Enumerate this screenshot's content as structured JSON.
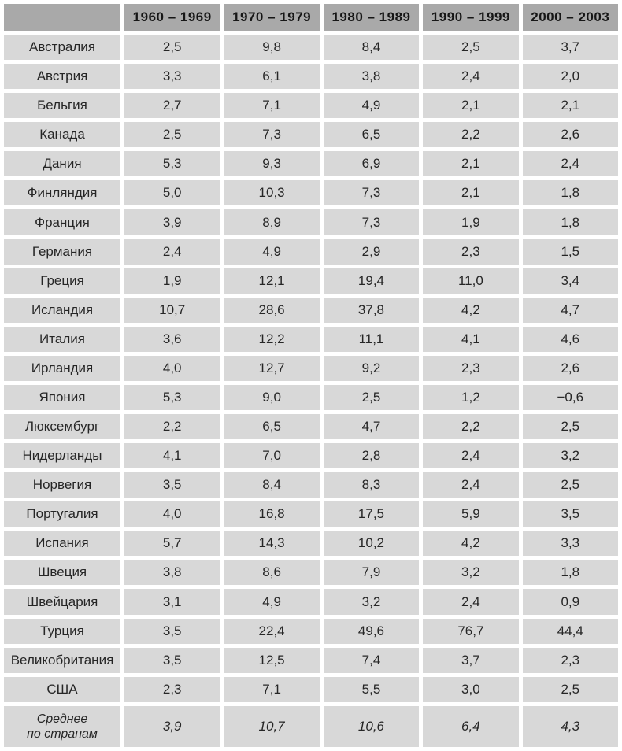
{
  "table": {
    "corner_label": "",
    "columns": [
      "1960 – 1969",
      "1970 – 1979",
      "1980 – 1989",
      "1990 – 1999",
      "2000 – 2003"
    ],
    "rows": [
      {
        "label": "Австралия",
        "values": [
          "2,5",
          "9,8",
          "8,4",
          "2,5",
          "3,7"
        ]
      },
      {
        "label": "Австрия",
        "values": [
          "3,3",
          "6,1",
          "3,8",
          "2,4",
          "2,0"
        ]
      },
      {
        "label": "Бельгия",
        "values": [
          "2,7",
          "7,1",
          "4,9",
          "2,1",
          "2,1"
        ]
      },
      {
        "label": "Канада",
        "values": [
          "2,5",
          "7,3",
          "6,5",
          "2,2",
          "2,6"
        ]
      },
      {
        "label": "Дания",
        "values": [
          "5,3",
          "9,3",
          "6,9",
          "2,1",
          "2,4"
        ]
      },
      {
        "label": "Финляндия",
        "values": [
          "5,0",
          "10,3",
          "7,3",
          "2,1",
          "1,8"
        ]
      },
      {
        "label": "Франция",
        "values": [
          "3,9",
          "8,9",
          "7,3",
          "1,9",
          "1,8"
        ]
      },
      {
        "label": "Германия",
        "values": [
          "2,4",
          "4,9",
          "2,9",
          "2,3",
          "1,5"
        ]
      },
      {
        "label": "Греция",
        "values": [
          "1,9",
          "12,1",
          "19,4",
          "11,0",
          "3,4"
        ]
      },
      {
        "label": "Исландия",
        "values": [
          "10,7",
          "28,6",
          "37,8",
          "4,2",
          "4,7"
        ]
      },
      {
        "label": "Италия",
        "values": [
          "3,6",
          "12,2",
          "11,1",
          "4,1",
          "4,6"
        ]
      },
      {
        "label": "Ирландия",
        "values": [
          "4,0",
          "12,7",
          "9,2",
          "2,3",
          "2,6"
        ]
      },
      {
        "label": "Япония",
        "values": [
          "5,3",
          "9,0",
          "2,5",
          "1,2",
          "−0,6"
        ]
      },
      {
        "label": "Люксембург",
        "values": [
          "2,2",
          "6,5",
          "4,7",
          "2,2",
          "2,5"
        ]
      },
      {
        "label": "Нидерланды",
        "values": [
          "4,1",
          "7,0",
          "2,8",
          "2,4",
          "3,2"
        ]
      },
      {
        "label": "Норвегия",
        "values": [
          "3,5",
          "8,4",
          "8,3",
          "2,4",
          "2,5"
        ]
      },
      {
        "label": "Португалия",
        "values": [
          "4,0",
          "16,8",
          "17,5",
          "5,9",
          "3,5"
        ]
      },
      {
        "label": "Испания",
        "values": [
          "5,7",
          "14,3",
          "10,2",
          "4,2",
          "3,3"
        ]
      },
      {
        "label": "Швеция",
        "values": [
          "3,8",
          "8,6",
          "7,9",
          "3,2",
          "1,8"
        ]
      },
      {
        "label": "Швейцария",
        "values": [
          "3,1",
          "4,9",
          "3,2",
          "2,4",
          "0,9"
        ]
      },
      {
        "label": "Турция",
        "values": [
          "3,5",
          "22,4",
          "49,6",
          "76,7",
          "44,4"
        ]
      },
      {
        "label": "Великобритания",
        "values": [
          "3,5",
          "12,5",
          "7,4",
          "3,7",
          "2,3"
        ]
      },
      {
        "label": "США",
        "values": [
          "2,3",
          "7,1",
          "5,5",
          "3,0",
          "2,5"
        ]
      },
      {
        "label": "Среднее\nпо странам",
        "values": [
          "3,9",
          "10,7",
          "10,6",
          "6,4",
          "4,3"
        ],
        "italic": true
      }
    ],
    "colors": {
      "header_bg": "#a9a9a9",
      "cell_bg": "#d8d8d8",
      "text": "#262626",
      "gap": "#ffffff"
    }
  }
}
